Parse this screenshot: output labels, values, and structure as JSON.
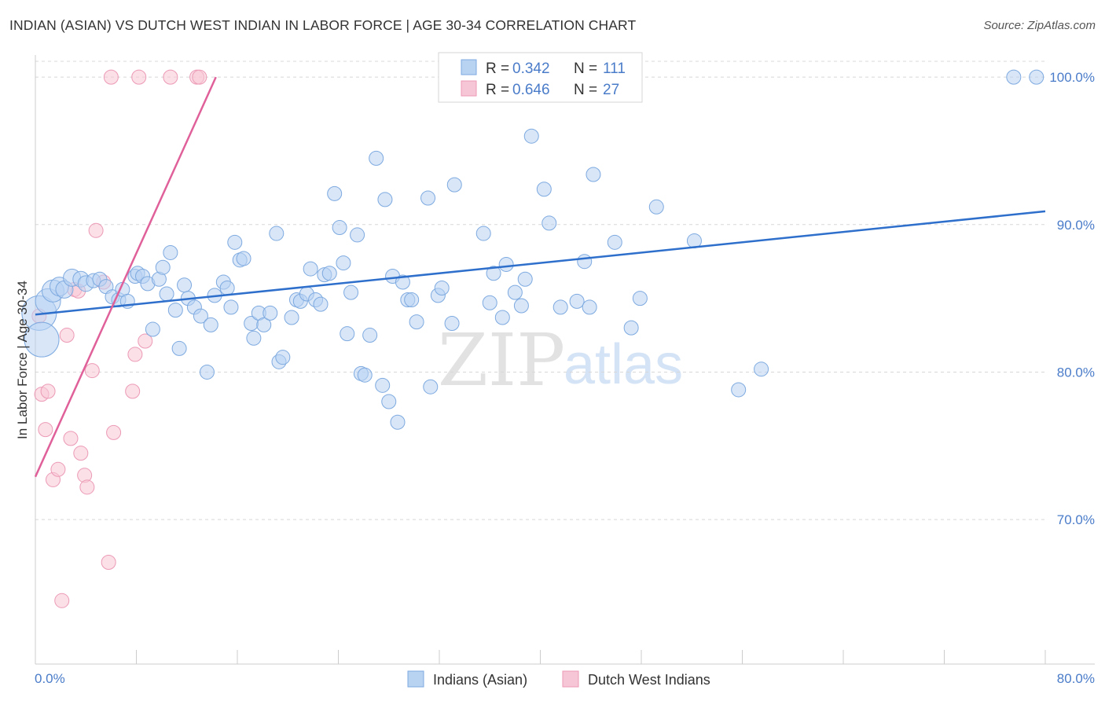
{
  "title": "INDIAN (ASIAN) VS DUTCH WEST INDIAN IN LABOR FORCE | AGE 30-34 CORRELATION CHART",
  "source": "Source: ZipAtlas.com",
  "watermark": {
    "zip": "ZIP",
    "atlas": "atlas"
  },
  "legend": {
    "r_label": "R =",
    "n_label": "N =",
    "rows": [
      {
        "r": "0.342",
        "n": "111"
      },
      {
        "r": "0.646",
        "n": "27"
      }
    ]
  },
  "bottom_legend": [
    "Indians (Asian)",
    "Dutch West Indians"
  ],
  "colors": {
    "blue_fill": "#b8d2f2",
    "blue_stroke": "#7eaae0",
    "blue_line": "#2e6fcc",
    "pink_fill": "#f7c6d6",
    "pink_stroke": "#ec9ab5",
    "pink_line": "#e0609a",
    "tick_text": "#4a7cc9",
    "grid": "#d8d8d8"
  },
  "chart_data": {
    "type": "scatter",
    "title": "INDIAN (ASIAN) VS DUTCH WEST INDIAN IN LABOR FORCE | AGE 30-34 CORRELATION CHART",
    "xlabel": "",
    "ylabel": "In Labor Force | Age 30-34",
    "xlim": [
      0,
      80
    ],
    "ylim": [
      60.2,
      101.5
    ],
    "x_tick_labels": [
      "0.0%",
      "80.0%"
    ],
    "y_ticks": [
      70,
      80,
      90,
      100
    ],
    "y_tick_labels": [
      "70.0%",
      "80.0%",
      "90.0%",
      "100.0%"
    ],
    "grid": true,
    "legend_position": "top-center",
    "series": [
      {
        "name": "Indians (Asian)",
        "r": 0.342,
        "n": 111,
        "trend": {
          "x": [
            0,
            80
          ],
          "y": [
            83.9,
            90.9
          ]
        },
        "points": [
          [
            0.3,
            84.0,
            22
          ],
          [
            0.5,
            82.2,
            22
          ],
          [
            1.0,
            84.8,
            16
          ],
          [
            1.4,
            85.5,
            14
          ],
          [
            1.9,
            85.8,
            12
          ],
          [
            2.3,
            85.6,
            11
          ],
          [
            2.9,
            86.4,
            11
          ],
          [
            3.6,
            86.3,
            10
          ],
          [
            4.0,
            86.0,
            10
          ],
          [
            4.6,
            86.2,
            9
          ],
          [
            5.1,
            86.3,
            9
          ],
          [
            5.6,
            85.8,
            9
          ],
          [
            6.1,
            85.1,
            9
          ],
          [
            6.6,
            84.9,
            9
          ],
          [
            6.9,
            85.6,
            9
          ],
          [
            7.3,
            84.8,
            9
          ],
          [
            7.9,
            86.5,
            9
          ],
          [
            8.1,
            86.7,
            9
          ],
          [
            8.5,
            86.5,
            9
          ],
          [
            8.9,
            86.0,
            9
          ],
          [
            9.3,
            82.9,
            9
          ],
          [
            9.8,
            86.3,
            9
          ],
          [
            10.1,
            87.1,
            9
          ],
          [
            10.4,
            85.3,
            9
          ],
          [
            10.7,
            88.1,
            9
          ],
          [
            11.1,
            84.2,
            9
          ],
          [
            11.4,
            81.6,
            9
          ],
          [
            11.8,
            85.9,
            9
          ],
          [
            12.1,
            85.0,
            9
          ],
          [
            12.6,
            84.4,
            9
          ],
          [
            13.1,
            83.8,
            9
          ],
          [
            13.6,
            80.0,
            9
          ],
          [
            13.9,
            83.2,
            9
          ],
          [
            14.2,
            85.2,
            9
          ],
          [
            14.9,
            86.1,
            9
          ],
          [
            15.2,
            85.7,
            9
          ],
          [
            15.5,
            84.4,
            9
          ],
          [
            15.8,
            88.8,
            9
          ],
          [
            16.2,
            87.6,
            9
          ],
          [
            16.5,
            87.7,
            9
          ],
          [
            17.1,
            83.3,
            9
          ],
          [
            17.3,
            82.3,
            9
          ],
          [
            17.7,
            84.0,
            9
          ],
          [
            18.1,
            83.2,
            9
          ],
          [
            18.6,
            84.0,
            9
          ],
          [
            19.1,
            89.4,
            9
          ],
          [
            19.3,
            80.7,
            9
          ],
          [
            19.6,
            81.0,
            9
          ],
          [
            20.3,
            83.7,
            9
          ],
          [
            20.7,
            84.9,
            9
          ],
          [
            21.0,
            84.8,
            9
          ],
          [
            21.5,
            85.3,
            9
          ],
          [
            21.8,
            87.0,
            9
          ],
          [
            22.2,
            84.9,
            9
          ],
          [
            22.6,
            84.6,
            9
          ],
          [
            22.9,
            86.6,
            9
          ],
          [
            23.3,
            86.7,
            9
          ],
          [
            23.7,
            92.1,
            9
          ],
          [
            24.1,
            89.8,
            9
          ],
          [
            24.4,
            87.4,
            9
          ],
          [
            24.7,
            82.6,
            9
          ],
          [
            25.0,
            85.4,
            9
          ],
          [
            25.5,
            89.3,
            9
          ],
          [
            25.8,
            79.9,
            9
          ],
          [
            26.1,
            79.8,
            9
          ],
          [
            26.5,
            82.5,
            9
          ],
          [
            27.0,
            94.5,
            9
          ],
          [
            27.5,
            79.1,
            9
          ],
          [
            27.7,
            91.7,
            9
          ],
          [
            28.0,
            78.0,
            9
          ],
          [
            28.3,
            86.5,
            9
          ],
          [
            28.7,
            76.6,
            9
          ],
          [
            29.1,
            86.1,
            9
          ],
          [
            29.5,
            84.9,
            9
          ],
          [
            29.8,
            84.9,
            9
          ],
          [
            30.2,
            83.4,
            9
          ],
          [
            31.1,
            91.8,
            9
          ],
          [
            31.3,
            79.0,
            9
          ],
          [
            31.9,
            85.2,
            9
          ],
          [
            32.2,
            85.7,
            9
          ],
          [
            33.0,
            83.3,
            9
          ],
          [
            33.2,
            92.7,
            9
          ],
          [
            35.5,
            89.4,
            9
          ],
          [
            36.0,
            84.7,
            9
          ],
          [
            36.3,
            86.7,
            9
          ],
          [
            37.0,
            83.7,
            9
          ],
          [
            37.3,
            87.3,
            9
          ],
          [
            38.0,
            85.4,
            9
          ],
          [
            38.5,
            84.5,
            9
          ],
          [
            38.8,
            86.3,
            9
          ],
          [
            39.3,
            96.0,
            9
          ],
          [
            40.3,
            92.4,
            9
          ],
          [
            40.7,
            90.1,
            9
          ],
          [
            41.6,
            84.4,
            9
          ],
          [
            42.9,
            84.8,
            9
          ],
          [
            43.5,
            87.5,
            9
          ],
          [
            43.9,
            84.4,
            9
          ],
          [
            44.2,
            93.4,
            9
          ],
          [
            45.9,
            88.8,
            9
          ],
          [
            47.2,
            83.0,
            9
          ],
          [
            47.9,
            85.0,
            9
          ],
          [
            49.2,
            91.2,
            9
          ],
          [
            52.2,
            88.9,
            9
          ],
          [
            55.7,
            78.8,
            9
          ],
          [
            57.5,
            80.2,
            9
          ],
          [
            47.4,
            100.0,
            9
          ],
          [
            77.5,
            100.0,
            9
          ],
          [
            79.3,
            100.0,
            9
          ]
        ]
      },
      {
        "name": "Dutch West Indians",
        "r": 0.646,
        "n": 27,
        "trend": {
          "x": [
            0,
            14.3
          ],
          "y": [
            72.9,
            100.0
          ]
        },
        "points": [
          [
            0.3,
            83.8,
            9
          ],
          [
            0.5,
            78.5,
            9
          ],
          [
            0.8,
            76.1,
            9
          ],
          [
            1.0,
            78.7,
            9
          ],
          [
            1.4,
            72.7,
            9
          ],
          [
            1.8,
            73.4,
            9
          ],
          [
            2.5,
            82.5,
            9
          ],
          [
            2.8,
            75.5,
            9
          ],
          [
            3.1,
            85.6,
            9
          ],
          [
            3.4,
            85.5,
            9
          ],
          [
            3.6,
            74.5,
            9
          ],
          [
            3.9,
            73.0,
            9
          ],
          [
            4.1,
            72.2,
            9
          ],
          [
            4.5,
            80.1,
            9
          ],
          [
            4.8,
            89.6,
            9
          ],
          [
            5.4,
            86.1,
            9
          ],
          [
            5.8,
            67.1,
            9
          ],
          [
            6.2,
            75.9,
            9
          ],
          [
            7.7,
            78.7,
            9
          ],
          [
            7.9,
            81.2,
            9
          ],
          [
            8.7,
            82.1,
            9
          ],
          [
            2.1,
            64.5,
            9
          ],
          [
            6.0,
            100.0,
            9
          ],
          [
            8.2,
            100.0,
            9
          ],
          [
            10.7,
            100.0,
            9
          ],
          [
            12.8,
            100.0,
            9
          ],
          [
            13.0,
            100.0,
            9
          ]
        ]
      }
    ]
  }
}
